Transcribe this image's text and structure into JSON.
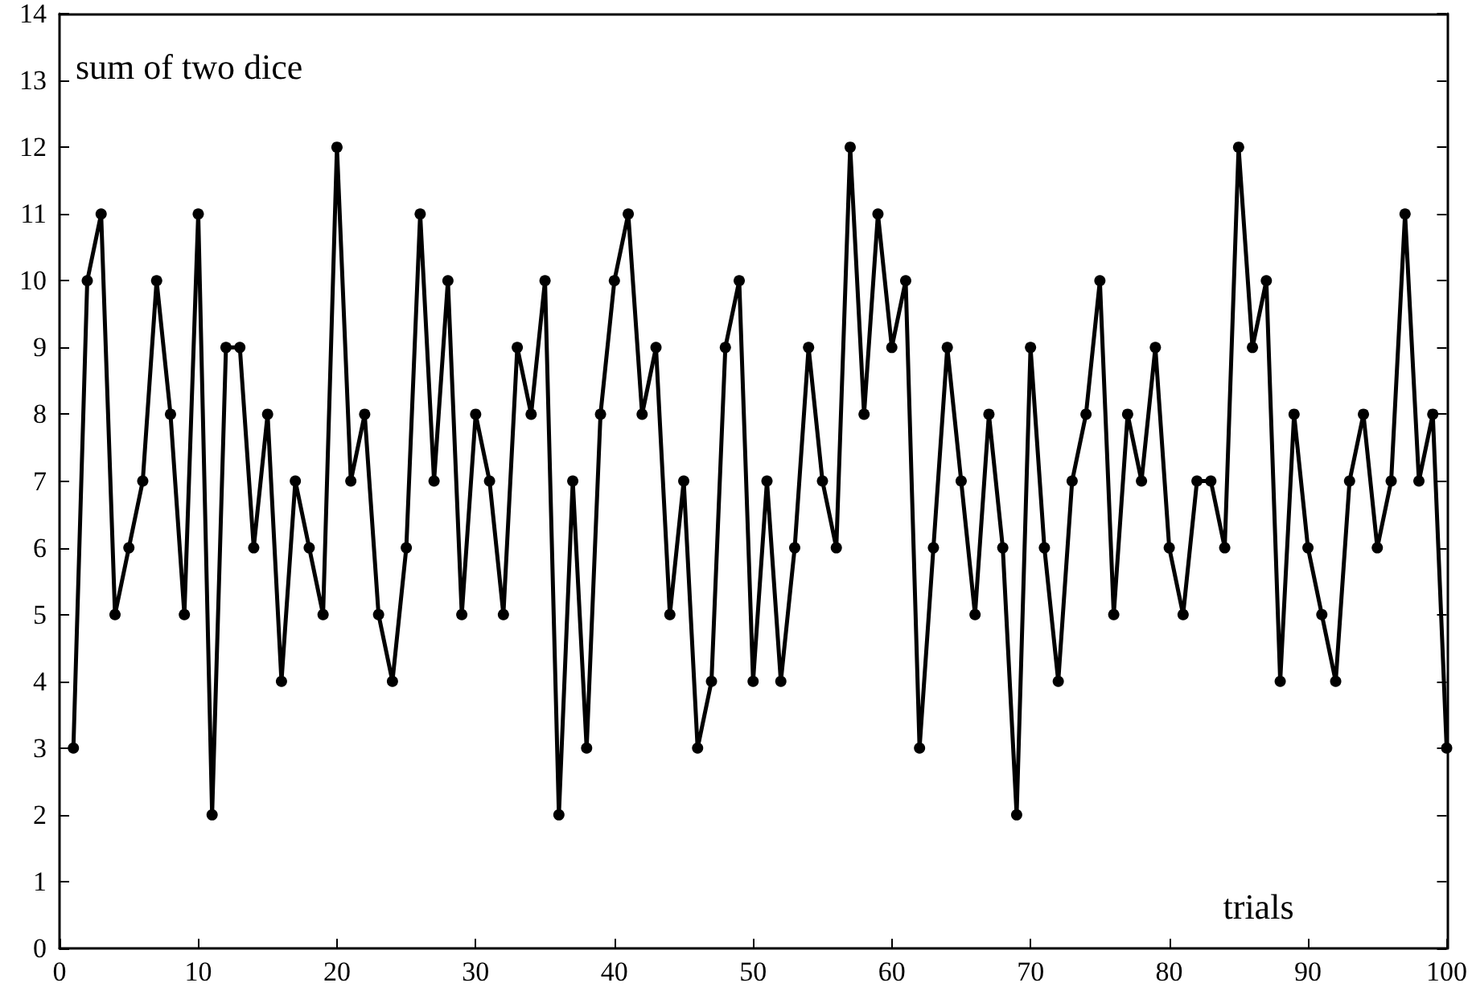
{
  "chart_data": {
    "type": "line",
    "xlabel": "trials",
    "ylabel": "sum of two dice",
    "x": [
      1,
      2,
      3,
      4,
      5,
      6,
      7,
      8,
      9,
      10,
      11,
      12,
      13,
      14,
      15,
      16,
      17,
      18,
      19,
      20,
      21,
      22,
      23,
      24,
      25,
      26,
      27,
      28,
      29,
      30,
      31,
      32,
      33,
      34,
      35,
      36,
      37,
      38,
      39,
      40,
      41,
      42,
      43,
      44,
      45,
      46,
      47,
      48,
      49,
      50,
      51,
      52,
      53,
      54,
      55,
      56,
      57,
      58,
      59,
      60,
      61,
      62,
      63,
      64,
      65,
      66,
      67,
      68,
      69,
      70,
      71,
      72,
      73,
      74,
      75,
      76,
      77,
      78,
      79,
      80,
      81,
      82,
      83,
      84,
      85,
      86,
      87,
      88,
      89,
      90,
      91,
      92,
      93,
      94,
      95,
      96,
      97,
      98,
      99,
      100
    ],
    "series": [
      {
        "color": "#000000",
        "values": [
          3,
          10,
          11,
          5,
          6,
          7,
          10,
          8,
          5,
          11,
          2,
          9,
          9,
          6,
          8,
          4,
          7,
          6,
          5,
          12,
          7,
          8,
          5,
          4,
          6,
          11,
          7,
          10,
          5,
          8,
          7,
          5,
          9,
          8,
          10,
          2,
          7,
          3,
          8,
          10,
          11,
          8,
          9,
          5,
          7,
          3,
          4,
          9,
          10,
          4,
          7,
          4,
          6,
          9,
          7,
          6,
          12,
          8,
          11,
          9,
          10,
          3,
          6,
          9,
          7,
          5,
          8,
          6,
          2,
          9,
          6,
          4,
          7,
          8,
          10,
          5,
          8,
          7,
          9,
          6,
          5,
          7,
          7,
          6,
          12,
          9,
          10,
          4,
          8,
          6,
          5,
          4,
          7,
          8,
          6,
          7,
          11,
          7,
          8,
          3
        ]
      }
    ],
    "xlim": [
      0,
      100
    ],
    "xticks": [
      0,
      10,
      20,
      30,
      40,
      50,
      60,
      70,
      80,
      90,
      100
    ],
    "ylim": [
      0,
      14
    ],
    "yticks": [
      0,
      1,
      2,
      3,
      4,
      5,
      6,
      7,
      8,
      9,
      10,
      11,
      12,
      13,
      14
    ],
    "grid": false,
    "marker": "circle",
    "line_style": "solid"
  }
}
